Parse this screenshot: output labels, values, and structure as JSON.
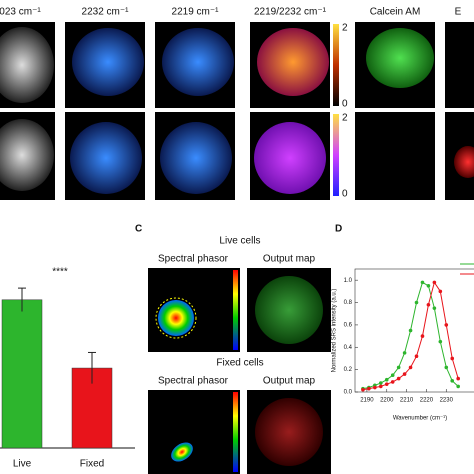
{
  "top_panels": {
    "columns": [
      "023 cm⁻¹",
      "2232 cm⁻¹",
      "2219 cm⁻¹",
      "2219/2232 cm⁻¹",
      "Calcein AM",
      "E"
    ],
    "colorbar_ticks": [
      "2",
      "0"
    ]
  },
  "bar_chart": {
    "type": "bar",
    "significance": "****",
    "categories": [
      "Live",
      "Fixed"
    ],
    "values": [
      0.76,
      0.41
    ],
    "errors": [
      0.06,
      0.08
    ],
    "colors": [
      "#2db52d",
      "#e8141b"
    ],
    "ylim": [
      0,
      1
    ]
  },
  "panel_c": {
    "label": "C",
    "groups": [
      {
        "title": "Live cells",
        "left": "Spectral phasor",
        "right": "Output map"
      },
      {
        "title": "Fixed cells",
        "left": "Spectral phasor",
        "right": "Output map"
      }
    ]
  },
  "panel_d": {
    "label": "D",
    "type": "line",
    "xlabel": "Wavenumber (cm⁻¹)",
    "ylabel": "Normalized SRS intensity (a.u.)",
    "xlim": [
      2184,
      2248
    ],
    "ylim": [
      0,
      1.1
    ],
    "xticks": [
      2190,
      2200,
      2210,
      2220,
      2230
    ],
    "yticks": [
      {
        "value": 0,
        "label": "0.0"
      },
      {
        "value": 0.2,
        "label": "0.2"
      },
      {
        "value": 0.4,
        "label": "0.4"
      },
      {
        "value": 0.6,
        "label": "0.6"
      },
      {
        "value": 0.8,
        "label": "0.8"
      },
      {
        "value": 1,
        "label": "1.0"
      }
    ],
    "x": [
      2188,
      2191,
      2194,
      2197,
      2200,
      2203,
      2206,
      2209,
      2212,
      2215,
      2218,
      2221,
      2224,
      2227,
      2230,
      2233,
      2236
    ],
    "series": [
      {
        "color": "#2db52d",
        "values": [
          0.03,
          0.04,
          0.06,
          0.08,
          0.11,
          0.15,
          0.22,
          0.35,
          0.55,
          0.8,
          0.98,
          0.95,
          0.75,
          0.45,
          0.22,
          0.1,
          0.05
        ]
      },
      {
        "color": "#e8141b",
        "values": [
          0.02,
          0.03,
          0.04,
          0.05,
          0.07,
          0.09,
          0.12,
          0.16,
          0.22,
          0.32,
          0.5,
          0.78,
          0.98,
          0.9,
          0.6,
          0.3,
          0.12
        ]
      }
    ]
  }
}
